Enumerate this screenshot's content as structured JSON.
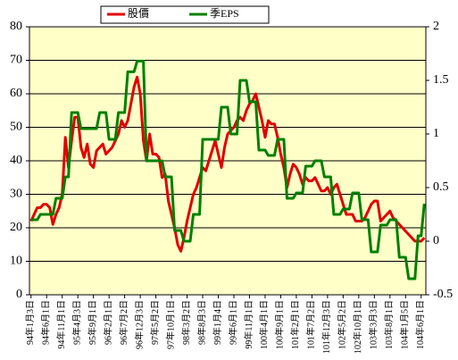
{
  "chart_data": {
    "type": "line",
    "legend": "top",
    "grid": true,
    "categories": [
      "94年1月3日",
      null,
      null,
      null,
      null,
      "94年6月1日",
      null,
      null,
      null,
      null,
      "94年11月1日",
      null,
      null,
      null,
      null,
      "95年4月3日",
      null,
      null,
      null,
      null,
      "95年9月1日",
      null,
      null,
      null,
      null,
      "96年2月1日",
      null,
      null,
      null,
      null,
      "96年7月2日",
      null,
      null,
      null,
      null,
      "96年12月3日",
      null,
      null,
      null,
      null,
      "97年5月2日",
      null,
      null,
      null,
      null,
      "97年10月1日",
      null,
      null,
      null,
      null,
      "98年3月2日",
      null,
      null,
      null,
      null,
      "98年8月3日",
      null,
      null,
      null,
      null,
      "99年1月4日",
      null,
      null,
      null,
      null,
      "99年6月1日",
      null,
      null,
      null,
      null,
      "99年11月1日",
      null,
      null,
      null,
      null,
      "100年4月1日",
      null,
      null,
      null,
      null,
      "100年9月1日",
      null,
      null,
      null,
      null,
      "101年2月1日",
      null,
      null,
      null,
      null,
      "101年7月2日",
      null,
      null,
      null,
      null,
      "101年12月3日",
      null,
      null,
      null,
      null,
      "102年5月2日",
      null,
      null,
      null,
      null,
      "102年10月1日",
      null,
      null,
      null,
      null,
      "103年3月3日",
      null,
      null,
      null,
      null,
      "103年8月1日",
      null,
      null,
      null,
      null,
      "104年1月5日",
      null,
      null,
      null,
      null,
      "104年6月1日",
      null
    ],
    "series": [
      {
        "name": "股價",
        "color": "#e00000",
        "values": [
          22,
          24,
          26,
          26,
          27,
          27,
          26,
          21,
          24,
          26,
          30,
          47,
          38,
          46,
          53,
          53,
          44,
          41,
          45,
          39,
          38,
          43,
          44,
          45,
          42,
          43,
          44,
          46,
          48,
          52,
          50,
          52,
          57,
          62,
          65,
          60,
          46,
          40,
          48,
          42,
          42,
          41,
          35,
          36,
          28,
          24,
          20,
          15,
          13,
          17,
          22,
          26,
          30,
          32,
          35,
          38,
          37,
          40,
          43,
          46,
          42,
          38,
          44,
          48,
          49,
          50,
          52,
          53,
          52,
          55,
          57,
          58,
          60,
          56,
          52,
          47,
          52,
          51,
          51,
          47,
          42,
          38,
          32,
          36,
          39,
          38,
          36,
          33,
          35,
          34,
          34,
          35,
          33,
          31,
          31,
          32,
          30,
          32,
          33,
          30,
          27,
          24,
          24,
          24,
          22,
          22,
          22,
          23,
          25,
          27,
          28,
          28,
          22,
          23,
          24,
          25,
          23,
          22,
          21,
          20,
          19,
          18,
          17,
          16,
          16,
          16,
          17
        ]
      },
      {
        "name": "季EPS",
        "color": "#008000",
        "axis": "y2",
        "values": [
          0.2,
          0.2,
          0.2,
          0.25,
          0.25,
          0.25,
          0.25,
          0.25,
          0.4,
          0.4,
          0.4,
          0.6,
          0.6,
          1.2,
          1.2,
          1.2,
          1.05,
          1.05,
          1.05,
          1.05,
          1.05,
          1.05,
          1.2,
          1.2,
          1.2,
          0.95,
          0.95,
          0.95,
          1.2,
          1.2,
          1.2,
          1.58,
          1.58,
          1.58,
          1.68,
          1.68,
          1.68,
          0.75,
          0.75,
          0.75,
          0.75,
          0.75,
          0.75,
          0.6,
          0.6,
          0.6,
          0.1,
          0.1,
          0.1,
          0,
          0,
          0,
          0.25,
          0.25,
          0.25,
          0.95,
          0.95,
          0.95,
          0.95,
          0.95,
          0.95,
          1.25,
          1.25,
          1.25,
          1,
          1,
          1,
          1.5,
          1.5,
          1.5,
          1.3,
          1.3,
          1.3,
          0.85,
          0.85,
          0.85,
          0.8,
          0.8,
          0.8,
          0.95,
          0.95,
          0.95,
          0.4,
          0.4,
          0.4,
          0.45,
          0.45,
          0.45,
          0.7,
          0.7,
          0.7,
          0.75,
          0.75,
          0.75,
          0.6,
          0.6,
          0.6,
          0.25,
          0.25,
          0.25,
          0.3,
          0.3,
          0.3,
          0.45,
          0.45,
          0.45,
          0.2,
          0.2,
          0.2,
          -0.1,
          -0.1,
          -0.1,
          0.15,
          0.15,
          0.15,
          0.2,
          0.2,
          0.2,
          -0.15,
          -0.15,
          -0.15,
          -0.35,
          -0.35,
          -0.35,
          0.05,
          0.05,
          0.35
        ]
      }
    ],
    "ylim": [
      0,
      80
    ],
    "yticks": [
      0,
      10,
      20,
      30,
      40,
      50,
      60,
      70,
      80
    ],
    "y2lim": [
      -0.5,
      2
    ],
    "y2ticks": [
      -0.5,
      0,
      0.5,
      1,
      1.5,
      2
    ]
  }
}
